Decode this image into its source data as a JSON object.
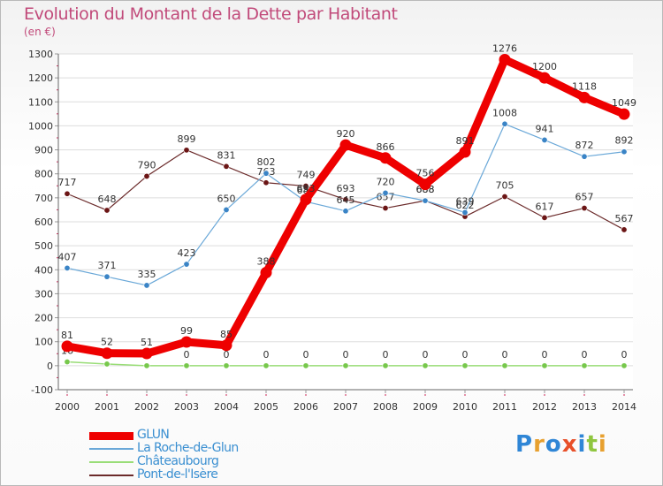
{
  "title": "Evolution du Montant de la Dette par Habitant",
  "unit_label": "(en €)",
  "brand": {
    "text": "Proxiti",
    "colors": [
      "#2f86d6",
      "#e7a02f",
      "#2f86d6",
      "#e8502a",
      "#2f86d6",
      "#8fc63f",
      "#e7a02f"
    ]
  },
  "chart_data": {
    "type": "line",
    "title": "Evolution du Montant de la Dette par Habitant",
    "ylabel": "(en €)",
    "x": [
      2000,
      2001,
      2002,
      2003,
      2004,
      2005,
      2006,
      2007,
      2008,
      2009,
      2010,
      2011,
      2012,
      2013,
      2014
    ],
    "ylim": [
      -100,
      1300
    ],
    "yticks": [
      -100,
      0,
      100,
      200,
      300,
      400,
      500,
      600,
      700,
      800,
      900,
      1000,
      1100,
      1200,
      1300
    ],
    "grid": "horizontal",
    "legend": "bottom-left",
    "series": [
      {
        "name": "Pont-de-l'Isère",
        "color": "#6b2a2a",
        "point_color": "#6b1515",
        "width": 1.2,
        "values": [
          717,
          648,
          790,
          899,
          831,
          763,
          749,
          693,
          657,
          688,
          622,
          705,
          617,
          657,
          567
        ]
      },
      {
        "name": "La Roche-de-Glun",
        "color": "#6aa8d8",
        "point_color": "#3a84c6",
        "width": 1.2,
        "values": [
          407,
          371,
          335,
          423,
          650,
          802,
          684,
          645,
          720,
          688,
          639,
          1008,
          941,
          872,
          892
        ]
      },
      {
        "name": "Châteaubourg",
        "color": "#99dd77",
        "point_color": "#77c84c",
        "width": 1.5,
        "values": [
          16,
          7,
          0,
          0,
          0,
          0,
          0,
          0,
          0,
          0,
          0,
          0,
          0,
          0,
          0
        ]
      },
      {
        "name": "GLUN",
        "color": "#ee0000",
        "point_color": "#ee0000",
        "width": 9,
        "values": [
          81,
          52,
          51,
          99,
          85,
          388,
          693,
          920,
          866,
          756,
          891,
          1276,
          1200,
          1118,
          1049
        ]
      }
    ],
    "legend_order": [
      "GLUN",
      "La Roche-de-Glun",
      "Châteaubourg",
      "Pont-de-l'Isère"
    ]
  }
}
